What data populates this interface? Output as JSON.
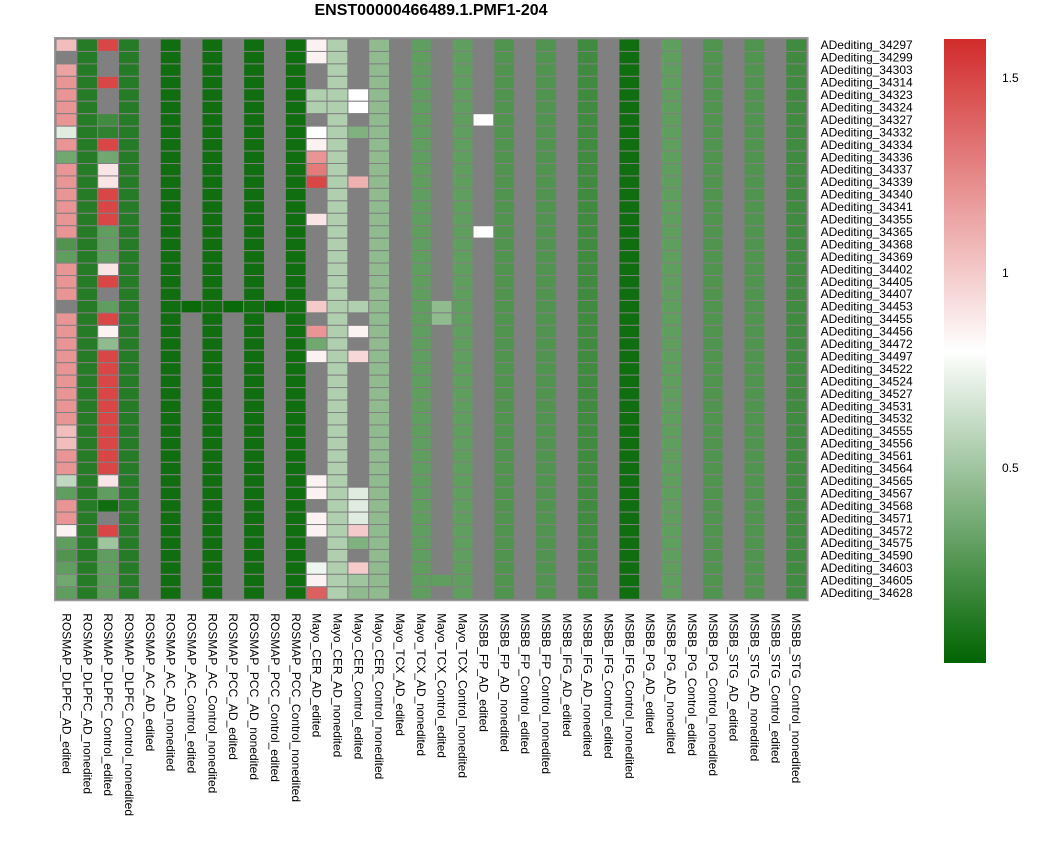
{
  "chart_data": {
    "type": "heatmap",
    "title": "ENST00000466489.1.PMF1-204",
    "legend": {
      "ticks": [
        "1.5",
        "1",
        "0.5"
      ],
      "tick_values": [
        1.5,
        1.0,
        0.5
      ],
      "range": [
        0,
        1.6
      ],
      "colors": {
        "low": "#006400",
        "mid": "#ffffff",
        "high": "#d22b2b",
        "na": "#808080"
      }
    },
    "columns": [
      "ROSMAP_DLPFC_AD_edited",
      "ROSMAP_DLPFC_AD_nonedited",
      "ROSMAP_DLPFC_Control_edited",
      "ROSMAP_DLPFC_Control_nonedited",
      "ROSMAP_AC_AD_edited",
      "ROSMAP_AC_AD_nonedited",
      "ROSMAP_AC_Control_edited",
      "ROSMAP_AC_Control_nonedited",
      "ROSMAP_PCC_AD_edited",
      "ROSMAP_PCC_AD_nonedited",
      "ROSMAP_PCC_Control_edited",
      "ROSMAP_PCC_Control_nonedited",
      "Mayo_CER_AD_edited",
      "Mayo_CER_AD_nonedited",
      "Mayo_CER_Control_edited",
      "Mayo_CER_Control_nonedited",
      "Mayo_TCX_AD_edited",
      "Mayo_TCX_AD_nonedited",
      "Mayo_TCX_Control_edited",
      "Mayo_TCX_Control_nonedited",
      "MSBB_FP_AD_edited",
      "MSBB_FP_AD_nonedited",
      "MSBB_FP_Control_edited",
      "MSBB_FP_Control_nonedited",
      "MSBB_IFG_AD_edited",
      "MSBB_IFG_AD_nonedited",
      "MSBB_IFG_Control_edited",
      "MSBB_IFG_Control_nonedited",
      "MSBB_PG_AD_edited",
      "MSBB_PG_AD_nonedited",
      "MSBB_PG_Control_edited",
      "MSBB_PG_Control_nonedited",
      "MSBB_STG_AD_edited",
      "MSBB_STG_AD_nonedited",
      "MSBB_STG_Control_edited",
      "MSBB_STG_Control_nonedited"
    ],
    "rows": [
      "ADediting_34297",
      "ADediting_34299",
      "ADediting_34303",
      "ADediting_34314",
      "ADediting_34323",
      "ADediting_34324",
      "ADediting_34327",
      "ADediting_34332",
      "ADediting_34334",
      "ADediting_34336",
      "ADediting_34337",
      "ADediting_34339",
      "ADediting_34340",
      "ADediting_34341",
      "ADediting_34355",
      "ADediting_34365",
      "ADediting_34368",
      "ADediting_34369",
      "ADediting_34402",
      "ADediting_34405",
      "ADediting_34407",
      "ADediting_34453",
      "ADediting_34455",
      "ADediting_34456",
      "ADediting_34472",
      "ADediting_34497",
      "ADediting_34522",
      "ADediting_34524",
      "ADediting_34527",
      "ADediting_34531",
      "ADediting_34532",
      "ADediting_34555",
      "ADediting_34556",
      "ADediting_34561",
      "ADediting_34564",
      "ADediting_34565",
      "ADediting_34567",
      "ADediting_34568",
      "ADediting_34571",
      "ADediting_34572",
      "ADediting_34575",
      "ADediting_34590",
      "ADediting_34603",
      "ADediting_34605",
      "ADediting_34628"
    ],
    "col_base": [
      null,
      0.12,
      null,
      0.12,
      null,
      0.05,
      null,
      0.05,
      null,
      0.05,
      null,
      0.05,
      null,
      null,
      null,
      0.45,
      null,
      0.3,
      null,
      0.3,
      null,
      0.25,
      null,
      0.25,
      null,
      0.2,
      null,
      0.05,
      null,
      0.3,
      null,
      0.25,
      null,
      0.25,
      null,
      0.2
    ],
    "overrides": {
      "col0": [
        1.05,
        null,
        1.15,
        1.2,
        1.2,
        1.2,
        1.2,
        0.7,
        1.2,
        0.35,
        1.2,
        1.2,
        1.2,
        1.2,
        1.2,
        1.2,
        0.25,
        0.3,
        1.2,
        1.2,
        1.2,
        null,
        1.2,
        1.2,
        1.2,
        1.2,
        1.2,
        1.2,
        1.2,
        1.2,
        1.2,
        1.05,
        1.05,
        1.2,
        1.2,
        0.6,
        0.3,
        1.2,
        1.2,
        0.85,
        0.3,
        0.25,
        0.3,
        0.35,
        0.3
      ],
      "col2": [
        1.5,
        null,
        null,
        1.5,
        null,
        null,
        0.2,
        0.15,
        1.5,
        0.35,
        0.9,
        0.9,
        1.5,
        1.5,
        1.5,
        0.3,
        0.3,
        0.3,
        0.9,
        1.5,
        null,
        0.3,
        1.5,
        0.85,
        0.45,
        1.5,
        1.5,
        1.5,
        1.5,
        1.5,
        1.5,
        1.5,
        1.5,
        1.5,
        1.5,
        0.9,
        0.3,
        0.05,
        null,
        1.5,
        0.5,
        0.3,
        0.3,
        0.3,
        0.3
      ],
      "col12": [
        0.85,
        0.85,
        null,
        null,
        0.55,
        0.55,
        null,
        0.8,
        0.85,
        1.2,
        1.3,
        1.5,
        null,
        null,
        0.9,
        null,
        null,
        null,
        null,
        null,
        null,
        1.0,
        null,
        1.2,
        0.35,
        0.85,
        null,
        null,
        null,
        null,
        null,
        null,
        null,
        null,
        null,
        0.85,
        0.85,
        null,
        0.85,
        0.85,
        null,
        null,
        0.75,
        0.85,
        1.4
      ],
      "col13": [
        0.55,
        0.55,
        0.55,
        0.55,
        0.55,
        0.55,
        0.55,
        0.55,
        0.55,
        0.55,
        0.55,
        0.55,
        0.55,
        0.55,
        0.55,
        0.55,
        0.55,
        0.55,
        0.55,
        0.55,
        0.55,
        0.55,
        0.55,
        0.55,
        0.55,
        0.55,
        0.55,
        0.55,
        0.55,
        0.55,
        0.55,
        0.55,
        0.55,
        0.55,
        0.55,
        0.55,
        0.55,
        0.55,
        0.55,
        0.55,
        0.55,
        0.55,
        0.55,
        0.55,
        0.55
      ],
      "col14": [
        null,
        null,
        null,
        null,
        0.8,
        0.8,
        null,
        0.4,
        null,
        null,
        null,
        1.1,
        null,
        null,
        null,
        null,
        null,
        null,
        null,
        null,
        null,
        0.55,
        null,
        0.85,
        null,
        0.95,
        null,
        null,
        null,
        null,
        null,
        null,
        null,
        null,
        null,
        null,
        0.7,
        0.7,
        0.7,
        1.0,
        0.4,
        null,
        1.0,
        0.5,
        0.45
      ]
    },
    "special_cells": [
      {
        "row": 6,
        "col": 20,
        "value": 0.8
      },
      {
        "row": 15,
        "col": 20,
        "value": 0.8
      },
      {
        "row": 21,
        "col": 18,
        "value": 0.45
      },
      {
        "row": 22,
        "col": 18,
        "value": 0.45
      },
      {
        "row": 43,
        "col": 18,
        "value": 0.3
      },
      {
        "row": 21,
        "col": 6,
        "value": 0.03
      },
      {
        "row": 21,
        "col": 8,
        "value": 0.03
      },
      {
        "row": 21,
        "col": 10,
        "value": 0.03
      }
    ]
  }
}
